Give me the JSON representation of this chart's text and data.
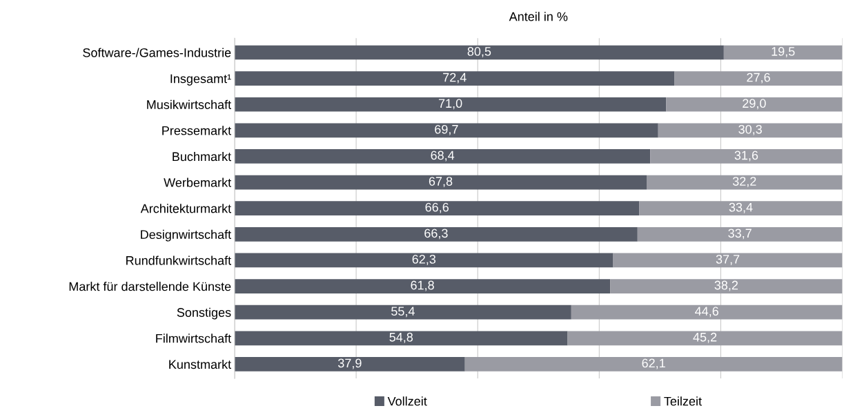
{
  "chart_data": {
    "type": "bar",
    "orientation": "horizontal",
    "stacked": true,
    "xlabel": "Anteil in %",
    "categories": [
      "Software-/Games-Industrie",
      "Insgesamt¹",
      "Musikwirtschaft",
      "Pressemarkt",
      "Buchmarkt",
      "Werbemarkt",
      "Architekturmarkt",
      "Designwirtschaft",
      "Rundfunkwirtschaft",
      "Markt für darstellende Künste",
      "Sonstiges",
      "Filmwirtschaft",
      "Kunstmarkt"
    ],
    "series": [
      {
        "name": "Vollzeit",
        "color": "#575c68",
        "values": [
          80.5,
          72.4,
          71.0,
          69.7,
          68.4,
          67.8,
          66.6,
          66.3,
          62.3,
          61.8,
          55.4,
          54.8,
          37.9
        ],
        "value_labels": [
          "80,5",
          "72,4",
          "71,0",
          "69,7",
          "68,4",
          "67,8",
          "66,6",
          "66,3",
          "62,3",
          "61,8",
          "55,4",
          "54,8",
          "37,9"
        ]
      },
      {
        "name": "Teilzeit",
        "color": "#9a9ba3",
        "values": [
          19.5,
          27.6,
          29.0,
          30.3,
          31.6,
          32.2,
          33.4,
          33.7,
          37.7,
          38.2,
          44.6,
          45.2,
          62.1
        ],
        "value_labels": [
          "19,5",
          "27,6",
          "29,0",
          "30,3",
          "31,6",
          "32,2",
          "33,4",
          "33,7",
          "37,7",
          "38,2",
          "44,6",
          "45,2",
          "62,1"
        ]
      }
    ],
    "xlim": [
      0,
      100
    ],
    "xticks": [
      {
        "value": 0,
        "label": null
      },
      {
        "value": 20,
        "label": null
      },
      {
        "value": 40,
        "label": null
      },
      {
        "value": 60,
        "label": null
      },
      {
        "value": 80,
        "label": null
      },
      {
        "value": 100,
        "label": null
      }
    ],
    "tick_labels": "y",
    "grid": "x",
    "legend": "bottom"
  }
}
